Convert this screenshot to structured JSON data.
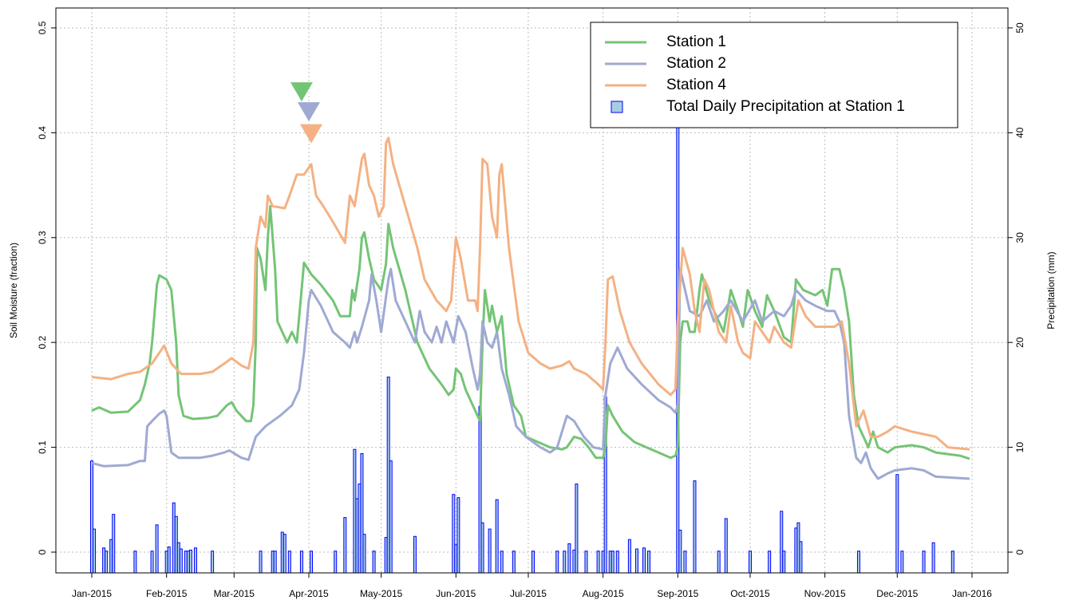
{
  "chart_data": {
    "type": "line",
    "ylabel": "Soil Moisture (fraction)",
    "y2label": "Precipitation (mm)",
    "xlim": [
      -14.9,
      379.9
    ],
    "xticks": [
      {
        "value": 0,
        "label": "Jan-2015"
      },
      {
        "value": 31,
        "label": "Feb-2015"
      },
      {
        "value": 59,
        "label": "Mar-2015"
      },
      {
        "value": 90,
        "label": "Apr-2015"
      },
      {
        "value": 120,
        "label": "May-2015"
      },
      {
        "value": 151,
        "label": "Jun-2015"
      },
      {
        "value": 181,
        "label": "Jul-2015"
      },
      {
        "value": 212,
        "label": "Aug-2015"
      },
      {
        "value": 243,
        "label": "Sep-2015"
      },
      {
        "value": 273,
        "label": "Oct-2015"
      },
      {
        "value": 304,
        "label": "Nov-2015"
      },
      {
        "value": 334,
        "label": "Dec-2015"
      },
      {
        "value": 365,
        "label": "Jan-2016"
      }
    ],
    "ylim": [
      -0.0198,
      0.519
    ],
    "yticks": [
      0,
      0.1,
      0.2,
      0.3,
      0.4,
      0.5
    ],
    "y2lim": [
      -1.98,
      51.9
    ],
    "y2ticks": [
      0,
      10,
      20,
      30,
      40,
      50
    ],
    "grid": true,
    "legend": "topright",
    "series": [
      {
        "name": "Station 1",
        "color": "#74c476",
        "x": [
          0,
          3,
          8,
          15,
          20,
          22,
          24,
          25,
          27,
          28,
          31,
          33,
          35,
          36,
          38,
          42,
          48,
          52,
          56,
          58,
          60,
          64,
          66,
          67,
          68,
          68.5,
          70,
          72,
          73,
          74,
          76,
          77,
          79,
          81,
          83,
          85,
          87,
          88,
          91,
          95,
          100,
          103,
          107,
          108,
          109,
          111,
          112,
          113,
          115,
          117,
          120,
          122,
          123,
          125,
          130,
          135,
          140,
          145,
          148,
          150,
          151,
          153,
          155,
          160,
          161,
          162,
          163,
          165,
          166,
          168,
          170,
          172,
          175,
          178,
          180,
          185,
          190,
          195,
          197,
          200,
          203,
          206,
          209,
          212,
          213,
          214,
          216,
          220,
          225,
          230,
          235,
          240,
          242,
          243,
          244,
          245,
          247,
          248,
          250,
          252,
          253,
          256,
          260,
          262,
          265,
          268,
          270,
          272,
          275,
          278,
          280,
          283,
          287,
          290,
          292,
          295,
          300,
          303,
          305,
          307,
          310,
          312,
          314,
          316,
          318,
          320,
          322,
          324,
          326,
          330,
          333,
          340,
          345,
          350,
          360,
          364
        ],
        "values": [
          0.135,
          0.138,
          0.133,
          0.134,
          0.145,
          0.16,
          0.18,
          0.2,
          0.255,
          0.264,
          0.26,
          0.25,
          0.2,
          0.15,
          0.13,
          0.127,
          0.128,
          0.13,
          0.14,
          0.143,
          0.135,
          0.125,
          0.125,
          0.14,
          0.2,
          0.29,
          0.28,
          0.25,
          0.3,
          0.33,
          0.27,
          0.22,
          0.21,
          0.2,
          0.21,
          0.2,
          0.25,
          0.276,
          0.265,
          0.255,
          0.24,
          0.225,
          0.225,
          0.25,
          0.24,
          0.27,
          0.3,
          0.305,
          0.28,
          0.26,
          0.25,
          0.275,
          0.313,
          0.29,
          0.25,
          0.2,
          0.175,
          0.16,
          0.15,
          0.155,
          0.175,
          0.17,
          0.155,
          0.13,
          0.125,
          0.2,
          0.25,
          0.22,
          0.235,
          0.21,
          0.225,
          0.17,
          0.14,
          0.13,
          0.11,
          0.105,
          0.1,
          0.098,
          0.1,
          0.11,
          0.108,
          0.1,
          0.09,
          0.09,
          0.1,
          0.14,
          0.13,
          0.115,
          0.105,
          0.1,
          0.095,
          0.09,
          0.092,
          0.1,
          0.2,
          0.22,
          0.22,
          0.21,
          0.21,
          0.25,
          0.265,
          0.24,
          0.22,
          0.21,
          0.25,
          0.23,
          0.215,
          0.25,
          0.23,
          0.215,
          0.245,
          0.23,
          0.205,
          0.2,
          0.26,
          0.25,
          0.245,
          0.25,
          0.235,
          0.27,
          0.27,
          0.25,
          0.22,
          0.15,
          0.12,
          0.11,
          0.1,
          0.115,
          0.1,
          0.095,
          0.1,
          0.102,
          0.1,
          0.095,
          0.092,
          0.089
        ]
      },
      {
        "name": "Station 2",
        "color": "#9fa9d3",
        "x": [
          0,
          5,
          15,
          20,
          22,
          23,
          25,
          28,
          30,
          31,
          33,
          36,
          45,
          50,
          55,
          57,
          62,
          65,
          68,
          72,
          78,
          83,
          86,
          88,
          90,
          91,
          95,
          100,
          105,
          107,
          109,
          110,
          112,
          115,
          116,
          118,
          120,
          123,
          124,
          126,
          130,
          134,
          136,
          138,
          141,
          143,
          145,
          147,
          150,
          152,
          155,
          158,
          160,
          161,
          162,
          164,
          166,
          168,
          170,
          173,
          176,
          180,
          186,
          190,
          193,
          197,
          200,
          204,
          208,
          212,
          213,
          215,
          218,
          222,
          228,
          235,
          240,
          242,
          243,
          244,
          246,
          248,
          252,
          255,
          258,
          262,
          265,
          270,
          275,
          278,
          283,
          287,
          290,
          292,
          296,
          300,
          305,
          308,
          310,
          312,
          314,
          317,
          319,
          321,
          323,
          326,
          330,
          333,
          340,
          345,
          350,
          364
        ],
        "values": [
          0.085,
          0.082,
          0.083,
          0.087,
          0.087,
          0.12,
          0.125,
          0.132,
          0.135,
          0.13,
          0.095,
          0.09,
          0.09,
          0.092,
          0.095,
          0.097,
          0.09,
          0.088,
          0.11,
          0.12,
          0.13,
          0.14,
          0.155,
          0.19,
          0.24,
          0.25,
          0.235,
          0.21,
          0.2,
          0.195,
          0.21,
          0.2,
          0.215,
          0.24,
          0.265,
          0.24,
          0.21,
          0.26,
          0.27,
          0.24,
          0.22,
          0.2,
          0.23,
          0.21,
          0.2,
          0.215,
          0.2,
          0.22,
          0.2,
          0.225,
          0.21,
          0.175,
          0.155,
          0.17,
          0.22,
          0.2,
          0.195,
          0.21,
          0.175,
          0.15,
          0.12,
          0.11,
          0.1,
          0.095,
          0.1,
          0.13,
          0.125,
          0.11,
          0.1,
          0.098,
          0.15,
          0.18,
          0.195,
          0.175,
          0.16,
          0.145,
          0.138,
          0.133,
          0.14,
          0.27,
          0.25,
          0.23,
          0.225,
          0.24,
          0.22,
          0.23,
          0.24,
          0.22,
          0.24,
          0.22,
          0.23,
          0.225,
          0.235,
          0.25,
          0.24,
          0.235,
          0.23,
          0.23,
          0.22,
          0.2,
          0.13,
          0.09,
          0.085,
          0.095,
          0.08,
          0.07,
          0.075,
          0.078,
          0.08,
          0.078,
          0.072,
          0.07
        ]
      },
      {
        "name": "Station 4",
        "color": "#f4b183",
        "x": [
          0,
          8,
          15,
          20,
          25,
          28,
          30,
          33,
          37,
          45,
          50,
          55,
          58,
          62,
          65,
          67,
          68,
          70,
          72,
          73,
          75,
          80,
          82,
          85,
          88,
          91,
          93,
          96,
          100,
          105,
          107,
          109,
          111,
          112,
          113,
          115,
          117,
          119,
          121,
          122,
          123,
          125,
          130,
          135,
          138,
          143,
          147,
          149,
          151,
          153,
          156,
          159,
          160,
          161,
          162,
          164,
          166,
          168,
          169,
          170,
          173,
          177,
          181,
          186,
          190,
          195,
          198,
          200,
          205,
          210,
          212,
          213,
          214,
          216,
          219,
          223,
          228,
          235,
          240,
          242,
          243,
          245,
          248,
          250,
          252,
          254,
          256,
          260,
          263,
          265,
          268,
          270,
          273,
          275,
          278,
          281,
          283,
          287,
          290,
          293,
          296,
          300,
          305,
          308,
          311,
          314,
          317,
          320,
          323,
          326,
          330,
          333,
          340,
          350,
          355,
          364
        ],
        "values": [
          0.167,
          0.165,
          0.17,
          0.172,
          0.18,
          0.19,
          0.197,
          0.18,
          0.17,
          0.17,
          0.172,
          0.18,
          0.185,
          0.178,
          0.175,
          0.2,
          0.29,
          0.32,
          0.31,
          0.34,
          0.33,
          0.328,
          0.34,
          0.36,
          0.36,
          0.37,
          0.34,
          0.33,
          0.315,
          0.295,
          0.34,
          0.33,
          0.36,
          0.375,
          0.38,
          0.35,
          0.34,
          0.32,
          0.33,
          0.39,
          0.395,
          0.37,
          0.33,
          0.29,
          0.26,
          0.24,
          0.23,
          0.24,
          0.3,
          0.28,
          0.24,
          0.24,
          0.23,
          0.29,
          0.375,
          0.37,
          0.32,
          0.3,
          0.36,
          0.37,
          0.29,
          0.22,
          0.19,
          0.18,
          0.175,
          0.178,
          0.182,
          0.175,
          0.17,
          0.16,
          0.155,
          0.2,
          0.26,
          0.263,
          0.23,
          0.2,
          0.18,
          0.16,
          0.15,
          0.155,
          0.22,
          0.29,
          0.265,
          0.23,
          0.21,
          0.26,
          0.25,
          0.21,
          0.2,
          0.235,
          0.2,
          0.19,
          0.185,
          0.22,
          0.21,
          0.2,
          0.215,
          0.2,
          0.195,
          0.24,
          0.225,
          0.215,
          0.215,
          0.215,
          0.22,
          0.18,
          0.12,
          0.135,
          0.11,
          0.11,
          0.115,
          0.12,
          0.115,
          0.11,
          0.1,
          0.098
        ]
      },
      {
        "name": "Total Daily Precipitation at Station 1",
        "type": "bar",
        "axis": "y2",
        "color": "#0000ff",
        "fill": "#a6cee3",
        "x": [
          0,
          1,
          5,
          6,
          8,
          9,
          18,
          25,
          27,
          31,
          32,
          34,
          35,
          36,
          37,
          39,
          40,
          41,
          43,
          50,
          70,
          75,
          76,
          79,
          80,
          82,
          87,
          91,
          101,
          105,
          109,
          110,
          111,
          112,
          113,
          117,
          122,
          123,
          124,
          134,
          150,
          151,
          152,
          161,
          162,
          165,
          168,
          170,
          175,
          183,
          193,
          196,
          198,
          200,
          201,
          205,
          210,
          212,
          213,
          215,
          216,
          218,
          223,
          226,
          229,
          231,
          243,
          244,
          246,
          250,
          260,
          263,
          273,
          281,
          286,
          287,
          292,
          293,
          294,
          318,
          334,
          336,
          345,
          349,
          357
        ],
        "values": [
          8.7,
          2.2,
          0.4,
          0.1,
          1.2,
          3.6,
          0.1,
          0.1,
          2.6,
          0.1,
          0.5,
          4.7,
          3.4,
          0.9,
          0.3,
          0.1,
          0.1,
          0.2,
          0.4,
          0.1,
          0.1,
          0.1,
          0.1,
          1.9,
          1.7,
          0.1,
          0.1,
          0.1,
          0.1,
          3.3,
          9.8,
          5.1,
          6.5,
          9.4,
          1.7,
          0.1,
          1.4,
          16.7,
          8.7,
          1.5,
          5.5,
          0.7,
          5.2,
          13.9,
          2.8,
          2.2,
          5.0,
          0.1,
          0.1,
          0.1,
          0.1,
          0.1,
          0.8,
          0.2,
          6.5,
          0.1,
          0.1,
          0.1,
          14.8,
          0.1,
          0.1,
          0.1,
          1.2,
          0.3,
          0.4,
          0.1,
          41.0,
          2.1,
          0.1,
          6.8,
          0.1,
          3.2,
          0.1,
          0.1,
          3.9,
          0.1,
          2.3,
          2.8,
          1.0,
          0.1,
          7.4,
          0.1,
          0.1,
          0.9,
          0.1
        ]
      }
    ],
    "markers": [
      {
        "color": "#74c476",
        "x": 87,
        "y": 0.439
      },
      {
        "color": "#9fa9d3",
        "x": 90,
        "y": 0.42
      },
      {
        "color": "#f4b183",
        "x": 91,
        "y": 0.399
      }
    ]
  }
}
